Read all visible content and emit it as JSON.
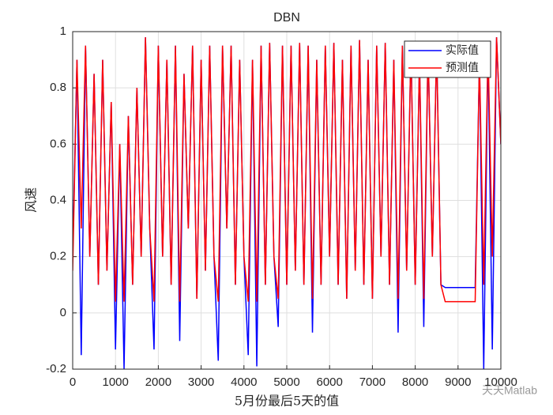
{
  "chart_data": {
    "type": "line",
    "title": "DBN",
    "xlabel": "5月份最后5天的值",
    "ylabel": "风速",
    "watermark": "天天Matlab",
    "xlim": [
      0,
      10000
    ],
    "xticks": [
      0,
      1000,
      2000,
      3000,
      4000,
      5000,
      6000,
      7000,
      8000,
      9000,
      10000
    ],
    "ylim": [
      -0.2,
      1
    ],
    "yticks": [
      -0.2,
      0,
      0.2,
      0.4,
      0.6,
      0.8,
      1
    ],
    "grid": true,
    "legend": "northeast",
    "x": [
      0,
      100,
      200,
      300,
      400,
      500,
      600,
      700,
      800,
      900,
      1000,
      1100,
      1200,
      1300,
      1400,
      1500,
      1600,
      1700,
      1800,
      1900,
      2000,
      2100,
      2200,
      2300,
      2400,
      2500,
      2600,
      2700,
      2800,
      2900,
      3000,
      3100,
      3200,
      3300,
      3400,
      3500,
      3600,
      3700,
      3800,
      3900,
      4000,
      4100,
      4200,
      4300,
      4400,
      4500,
      4600,
      4700,
      4800,
      4900,
      5000,
      5100,
      5200,
      5300,
      5400,
      5500,
      5600,
      5700,
      5800,
      5900,
      6000,
      6100,
      6200,
      6300,
      6400,
      6500,
      6600,
      6700,
      6800,
      6900,
      7000,
      7100,
      7200,
      7300,
      7400,
      7500,
      7600,
      7700,
      7800,
      7900,
      8000,
      8100,
      8200,
      8300,
      8400,
      8500,
      8600,
      8700,
      8800,
      8900,
      9000,
      9100,
      9200,
      9300,
      9400,
      9500,
      9600,
      9700,
      9800,
      9900,
      10000
    ],
    "series": [
      {
        "name": "实际值",
        "color": "#0000ff",
        "values": [
          0.2,
          0.9,
          -0.15,
          0.95,
          0.2,
          0.85,
          0.1,
          0.9,
          0.15,
          0.75,
          -0.13,
          0.6,
          -0.2,
          0.7,
          0.1,
          0.8,
          0.2,
          0.98,
          0.3,
          -0.13,
          0.95,
          0.2,
          0.9,
          0.1,
          0.95,
          -0.1,
          0.85,
          0.3,
          0.95,
          0.05,
          0.9,
          0.15,
          0.95,
          0.2,
          -0.17,
          0.95,
          0.3,
          0.95,
          0.1,
          0.9,
          0.2,
          -0.15,
          0.9,
          -0.19,
          0.95,
          0.1,
          0.96,
          0.2,
          -0.05,
          0.95,
          0.1,
          0.95,
          0.15,
          0.96,
          0.1,
          0.95,
          -0.07,
          0.9,
          0.1,
          0.95,
          0.2,
          0.96,
          0.1,
          0.9,
          0.05,
          0.95,
          0.15,
          0.97,
          0.1,
          0.9,
          0.05,
          0.95,
          0.2,
          0.96,
          0.1,
          0.9,
          -0.07,
          0.95,
          0.15,
          0.95,
          0.1,
          0.9,
          -0.05,
          0.95,
          0.2,
          0.95,
          0.1,
          0.09,
          0.09,
          0.09,
          0.09,
          0.09,
          0.09,
          0.09,
          0.09,
          0.9,
          -0.2,
          0.95,
          -0.13,
          0.98,
          0.6
        ]
      },
      {
        "name": "预测值",
        "color": "#ff0000",
        "values": [
          0.15,
          0.9,
          0.3,
          0.95,
          0.2,
          0.85,
          0.1,
          0.9,
          0.15,
          0.75,
          0.04,
          0.6,
          0.04,
          0.7,
          0.1,
          0.8,
          0.2,
          0.98,
          0.3,
          0.04,
          0.95,
          0.2,
          0.9,
          0.1,
          0.95,
          0.04,
          0.85,
          0.3,
          0.95,
          0.05,
          0.9,
          0.15,
          0.95,
          0.2,
          0.04,
          0.95,
          0.3,
          0.95,
          0.1,
          0.9,
          0.2,
          0.04,
          0.9,
          0.04,
          0.95,
          0.1,
          0.96,
          0.2,
          0.05,
          0.95,
          0.1,
          0.95,
          0.15,
          0.96,
          0.1,
          0.95,
          0.05,
          0.9,
          0.1,
          0.95,
          0.2,
          0.96,
          0.1,
          0.9,
          0.05,
          0.95,
          0.15,
          0.97,
          0.1,
          0.9,
          0.05,
          0.95,
          0.2,
          0.96,
          0.1,
          0.9,
          0.05,
          0.95,
          0.15,
          0.95,
          0.1,
          0.9,
          0.05,
          0.95,
          0.2,
          0.95,
          0.1,
          0.04,
          0.04,
          0.04,
          0.04,
          0.04,
          0.04,
          0.04,
          0.04,
          0.9,
          0.1,
          0.95,
          0.2,
          0.98,
          0.6
        ]
      }
    ]
  }
}
